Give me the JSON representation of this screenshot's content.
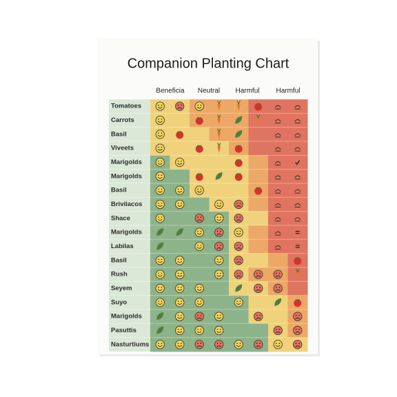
{
  "title": "Companion Planting Chart",
  "columns": [
    "Beneficia",
    "Neutral",
    "Harmful",
    "Harmful"
  ],
  "rows": [
    "Tomatoes",
    "Carrots",
    "Basil",
    "Viveets",
    "Marigolds",
    "Marigolds",
    "Basil",
    "Brivilacos",
    "Shace",
    "Marigolds",
    "Labilas",
    "Basil",
    "Rush",
    "Seyem",
    "Suyo",
    "Marigolds",
    "Pasuttis",
    "Nasturtiums"
  ]
}
